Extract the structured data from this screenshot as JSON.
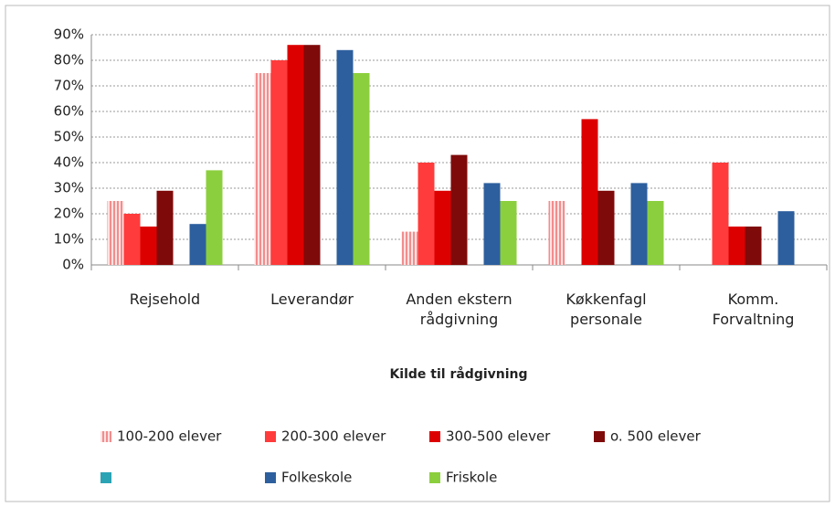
{
  "chart_data": {
    "type": "bar",
    "x_label": "Kilde til rådgivning",
    "categories": [
      "Rejsehold",
      "Leverandør",
      "Anden ekstern rådgivning",
      "Køkkenfagl personale",
      "Komm. Forvaltning"
    ],
    "series": [
      {
        "name": "100-200 elever",
        "color": "#f7a8a8",
        "hatch": true,
        "values": [
          25,
          75,
          13,
          25,
          null
        ]
      },
      {
        "name": "200-300 elever",
        "color": "#ff3b3b",
        "values": [
          20,
          80,
          40,
          null,
          40
        ]
      },
      {
        "name": "300-500 elever",
        "color": "#dd0000",
        "values": [
          15,
          86,
          29,
          57,
          15
        ]
      },
      {
        "name": "o. 500 elever",
        "color": "#7f0a0a",
        "values": [
          29,
          86,
          43,
          29,
          15
        ]
      },
      {
        "name": null,
        "color": "#2aa3b5",
        "values": [
          null,
          null,
          null,
          null,
          null
        ]
      },
      {
        "name": "Folkeskole",
        "color": "#2d5f9e",
        "values": [
          16,
          84,
          32,
          32,
          21
        ]
      },
      {
        "name": "Friskole",
        "color": "#8ccf3e",
        "values": [
          37,
          75,
          25,
          25,
          null
        ]
      }
    ],
    "ylim": [
      0,
      90
    ],
    "yticks": [
      {
        "value": 0,
        "label": "0%"
      },
      {
        "value": 10,
        "label": "10%"
      },
      {
        "value": 20,
        "label": "20%"
      },
      {
        "value": 30,
        "label": "30%"
      },
      {
        "value": 40,
        "label": "40%"
      },
      {
        "value": 50,
        "label": "50%"
      },
      {
        "value": 60,
        "label": "60%"
      },
      {
        "value": 70,
        "label": "70%"
      },
      {
        "value": 80,
        "label": "80%"
      },
      {
        "value": 90,
        "label": "90%"
      }
    ],
    "grid": true
  }
}
